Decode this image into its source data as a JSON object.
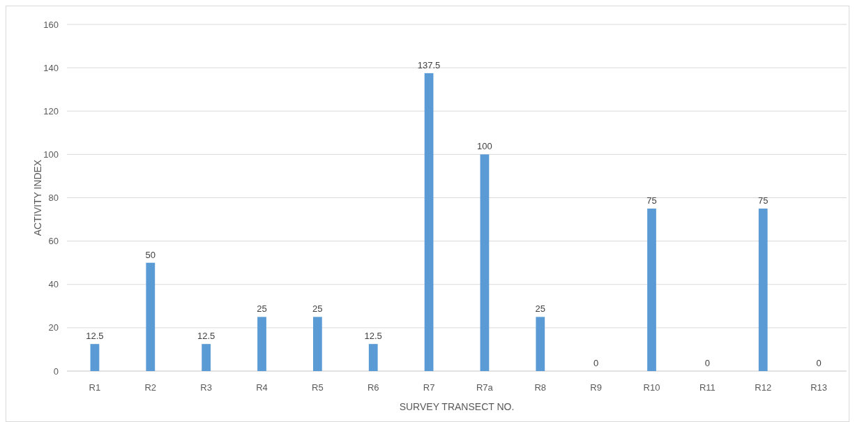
{
  "chart_data": {
    "type": "bar",
    "xlabel": "SURVEY TRANSECT NO.",
    "ylabel": "ACTIVITY INDEX",
    "categories": [
      "R1",
      "R2",
      "R3",
      "R4",
      "R5",
      "R6",
      "R7",
      "R7a",
      "R8",
      "R9",
      "R10",
      "R11",
      "R12",
      "R13"
    ],
    "values": [
      12.5,
      50,
      12.5,
      25,
      25,
      12.5,
      137.5,
      100,
      25,
      0,
      75,
      0,
      75,
      0
    ],
    "color": "#5b9bd5",
    "ylim": [
      0,
      160
    ],
    "yticks": [
      0,
      20,
      40,
      60,
      80,
      100,
      120,
      140,
      160
    ],
    "grid": "y",
    "data_labels": true
  }
}
